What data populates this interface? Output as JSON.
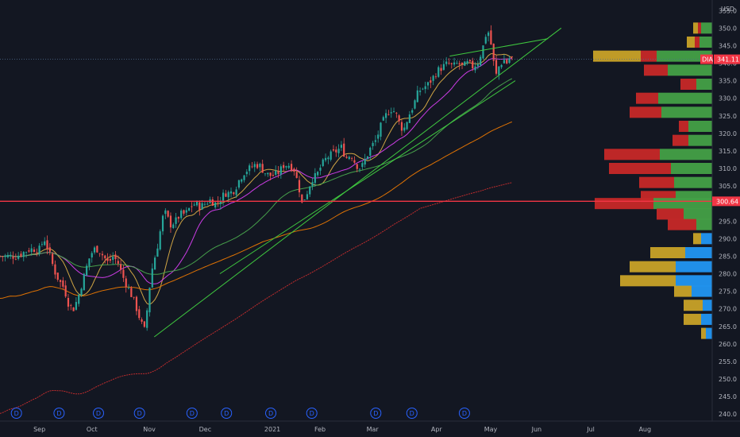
{
  "chart_data": {
    "type": "candlestick",
    "currency": "USD",
    "ylim": [
      238,
      358
    ],
    "y_ticks": [
      240,
      245,
      250,
      255,
      260,
      265,
      270,
      275,
      280,
      285,
      290,
      295,
      300,
      305,
      310,
      315,
      320,
      325,
      330,
      335,
      340,
      345,
      350,
      355
    ],
    "x_ticks": [
      {
        "label": "Sep",
        "day": 0
      },
      {
        "label": "Oct",
        "day": 32
      },
      {
        "label": "Nov",
        "day": 67
      },
      {
        "label": "Dec",
        "day": 101
      },
      {
        "label": "2021",
        "day": 142
      },
      {
        "label": "Feb",
        "day": 171
      },
      {
        "label": "Mar",
        "day": 203
      },
      {
        "label": "Apr",
        "day": 242
      },
      {
        "label": "May",
        "day": 275
      },
      {
        "label": "Jun",
        "day": 303
      },
      {
        "label": "Jul",
        "day": 336
      },
      {
        "label": "Aug",
        "day": 369
      }
    ],
    "x_range": [
      -24,
      410
    ],
    "candle_day_step": 1.6,
    "close_path": [
      [
        -24,
        285
      ],
      [
        -14,
        285
      ],
      [
        -6,
        287
      ],
      [
        0,
        287
      ],
      [
        3,
        290
      ],
      [
        6,
        286
      ],
      [
        9,
        281
      ],
      [
        12,
        278
      ],
      [
        15,
        276
      ],
      [
        18,
        271
      ],
      [
        21,
        270
      ],
      [
        24,
        274
      ],
      [
        27,
        279
      ],
      [
        30,
        284
      ],
      [
        33,
        287
      ],
      [
        36,
        287
      ],
      [
        39,
        285
      ],
      [
        42,
        283
      ],
      [
        45,
        285
      ],
      [
        48,
        283
      ],
      [
        51,
        279
      ],
      [
        54,
        276
      ],
      [
        57,
        273
      ],
      [
        60,
        269
      ],
      [
        62,
        266
      ],
      [
        64,
        264
      ],
      [
        66,
        271
      ],
      [
        68,
        280
      ],
      [
        70,
        284
      ],
      [
        72,
        288
      ],
      [
        74,
        293
      ],
      [
        76,
        298
      ],
      [
        78,
        296
      ],
      [
        80,
        294
      ],
      [
        83,
        295
      ],
      [
        86,
        297
      ],
      [
        89,
        297
      ],
      [
        92,
        299
      ],
      [
        95,
        300
      ],
      [
        98,
        299
      ],
      [
        101,
        300
      ],
      [
        104,
        301
      ],
      [
        107,
        300
      ],
      [
        110,
        301
      ],
      [
        113,
        303
      ],
      [
        116,
        303
      ],
      [
        119,
        304
      ],
      [
        122,
        307
      ],
      [
        125,
        309
      ],
      [
        128,
        310
      ],
      [
        131,
        311
      ],
      [
        134,
        311
      ],
      [
        137,
        309
      ],
      [
        140,
        308
      ],
      [
        143,
        308
      ],
      [
        146,
        309
      ],
      [
        149,
        311
      ],
      [
        152,
        311
      ],
      [
        155,
        310
      ],
      [
        158,
        305
      ],
      [
        160,
        300
      ],
      [
        163,
        303
      ],
      [
        166,
        307
      ],
      [
        169,
        308
      ],
      [
        172,
        311
      ],
      [
        175,
        313
      ],
      [
        178,
        314
      ],
      [
        181,
        315
      ],
      [
        184,
        316
      ],
      [
        187,
        313
      ],
      [
        190,
        314
      ],
      [
        193,
        311
      ],
      [
        196,
        310
      ],
      [
        199,
        313
      ],
      [
        202,
        316
      ],
      [
        205,
        318
      ],
      [
        208,
        322
      ],
      [
        211,
        325
      ],
      [
        214,
        327
      ],
      [
        217,
        326
      ],
      [
        220,
        322
      ],
      [
        222,
        321
      ],
      [
        225,
        325
      ],
      [
        228,
        328
      ],
      [
        231,
        332
      ],
      [
        234,
        333
      ],
      [
        237,
        334
      ],
      [
        240,
        336
      ],
      [
        243,
        338
      ],
      [
        246,
        339
      ],
      [
        249,
        340
      ],
      [
        252,
        339
      ],
      [
        255,
        340
      ],
      [
        258,
        339
      ],
      [
        261,
        340
      ],
      [
        264,
        339
      ],
      [
        267,
        340
      ],
      [
        270,
        344
      ],
      [
        272,
        348
      ],
      [
        274,
        349
      ],
      [
        276,
        343
      ],
      [
        278,
        336
      ],
      [
        280,
        339
      ],
      [
        283,
        341
      ],
      [
        285,
        340
      ],
      [
        287,
        342
      ],
      [
        289,
        341
      ]
    ],
    "ma_periods": [
      10,
      20,
      50,
      100,
      200
    ],
    "ma_colors": [
      "#e5b548",
      "#e040fb",
      "#4caf50",
      "#f57c00",
      "#d32f2f"
    ],
    "trendlines": [
      {
        "from": [
          70,
          262
        ],
        "to": [
          318,
          350
        ],
        "color": "#3fc93f"
      },
      {
        "from": [
          110,
          280
        ],
        "to": [
          290,
          335
        ],
        "color": "#3fc93f"
      },
      {
        "from": [
          250,
          342
        ],
        "to": [
          310,
          347
        ],
        "color": "#3fc93f"
      }
    ],
    "horizontal_lines": [
      {
        "y": 300.64,
        "color": "#f23645",
        "label": "300.64"
      }
    ],
    "last_price": {
      "symbol": "DIA",
      "value": "341.11",
      "y": 341.11,
      "color": "#f23645"
    },
    "volume_profile": [
      {
        "price": 350,
        "up": 0.07,
        "down": 0.02,
        "extra": 0.03
      },
      {
        "price": 346,
        "up": 0.08,
        "down": 0.03,
        "extra": 0.05
      },
      {
        "price": 342,
        "up": 0.35,
        "down": 0.1,
        "extra": 0.3
      },
      {
        "price": 338,
        "up": 0.28,
        "down": 0.15,
        "extra": 0.0
      },
      {
        "price": 334,
        "up": 0.1,
        "down": 0.1,
        "extra": 0.0
      },
      {
        "price": 330,
        "up": 0.34,
        "down": 0.14,
        "extra": 0.0
      },
      {
        "price": 326,
        "up": 0.32,
        "down": 0.2,
        "extra": 0.0
      },
      {
        "price": 322,
        "up": 0.15,
        "down": 0.06,
        "extra": 0.0
      },
      {
        "price": 318,
        "up": 0.15,
        "down": 0.1,
        "extra": 0.0
      },
      {
        "price": 314,
        "up": 0.33,
        "down": 0.35,
        "extra": 0.0
      },
      {
        "price": 310,
        "up": 0.26,
        "down": 0.39,
        "extra": 0.0
      },
      {
        "price": 306,
        "up": 0.24,
        "down": 0.22,
        "extra": 0.0
      },
      {
        "price": 302,
        "up": 0.23,
        "down": 0.22,
        "extra": 0.0
      },
      {
        "price": 300,
        "up": 0.37,
        "down": 0.37,
        "extra": 0.0
      },
      {
        "price": 297,
        "up": 0.18,
        "down": 0.17,
        "extra": 0.0
      },
      {
        "price": 294,
        "up": 0.1,
        "down": 0.18,
        "extra": 0.0
      },
      {
        "price": 290,
        "up": 0.07,
        "down": 0.0,
        "extra": 0.05
      },
      {
        "price": 286,
        "up": 0.17,
        "down": 0.0,
        "extra": 0.22
      },
      {
        "price": 282,
        "up": 0.23,
        "down": 0.0,
        "extra": 0.29
      },
      {
        "price": 278,
        "up": 0.23,
        "down": 0.0,
        "extra": 0.35
      },
      {
        "price": 275,
        "up": 0.13,
        "down": 0.0,
        "extra": 0.11
      },
      {
        "price": 271,
        "up": 0.06,
        "down": 0.0,
        "extra": 0.12
      },
      {
        "price": 267,
        "up": 0.07,
        "down": 0.0,
        "extra": 0.11
      },
      {
        "price": 263,
        "up": 0.04,
        "down": 0.0,
        "extra": 0.03
      }
    ],
    "volume_profile_colors": {
      "up": "#43a047",
      "down": "#c62828",
      "extra": "#2196f3",
      "extra2": "#c8a228"
    },
    "dividend_markers": {
      "label": "D",
      "days": [
        -14,
        12,
        36,
        61,
        93,
        114,
        141,
        166,
        205,
        227,
        259
      ]
    }
  }
}
